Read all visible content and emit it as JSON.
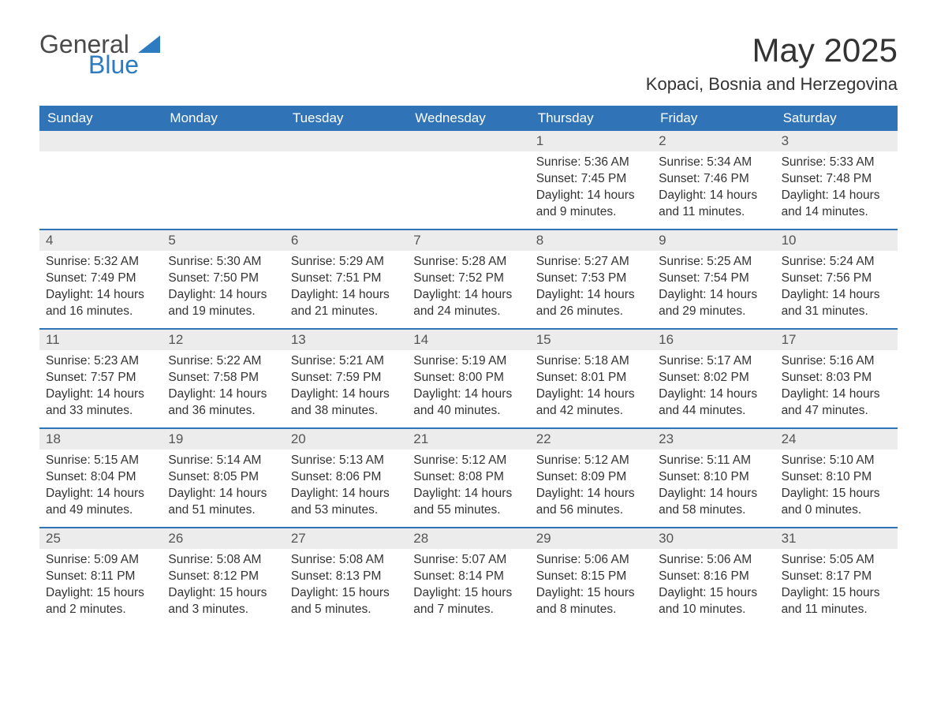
{
  "brand": {
    "general": "General",
    "blue": "Blue"
  },
  "title": "May 2025",
  "location": "Kopaci, Bosnia and Herzegovina",
  "colors": {
    "header_bg": "#3073b6",
    "header_text": "#ffffff",
    "daynum_bg": "#ececec",
    "text": "#333333",
    "brand_blue": "#2d7bc0",
    "brand_gray": "#4a4a4a",
    "page_bg": "#ffffff"
  },
  "typography": {
    "month_title_fontsize": 42,
    "location_fontsize": 22,
    "dow_fontsize": 17,
    "daynum_fontsize": 17,
    "info_fontsize": 15.5,
    "logo_fontsize": 32
  },
  "dow": [
    "Sunday",
    "Monday",
    "Tuesday",
    "Wednesday",
    "Thursday",
    "Friday",
    "Saturday"
  ],
  "weeks": [
    [
      {
        "n": "",
        "sunrise": "",
        "sunset": "",
        "daylight": ""
      },
      {
        "n": "",
        "sunrise": "",
        "sunset": "",
        "daylight": ""
      },
      {
        "n": "",
        "sunrise": "",
        "sunset": "",
        "daylight": ""
      },
      {
        "n": "",
        "sunrise": "",
        "sunset": "",
        "daylight": ""
      },
      {
        "n": "1",
        "sunrise": "Sunrise: 5:36 AM",
        "sunset": "Sunset: 7:45 PM",
        "daylight": "Daylight: 14 hours and 9 minutes."
      },
      {
        "n": "2",
        "sunrise": "Sunrise: 5:34 AM",
        "sunset": "Sunset: 7:46 PM",
        "daylight": "Daylight: 14 hours and 11 minutes."
      },
      {
        "n": "3",
        "sunrise": "Sunrise: 5:33 AM",
        "sunset": "Sunset: 7:48 PM",
        "daylight": "Daylight: 14 hours and 14 minutes."
      }
    ],
    [
      {
        "n": "4",
        "sunrise": "Sunrise: 5:32 AM",
        "sunset": "Sunset: 7:49 PM",
        "daylight": "Daylight: 14 hours and 16 minutes."
      },
      {
        "n": "5",
        "sunrise": "Sunrise: 5:30 AM",
        "sunset": "Sunset: 7:50 PM",
        "daylight": "Daylight: 14 hours and 19 minutes."
      },
      {
        "n": "6",
        "sunrise": "Sunrise: 5:29 AM",
        "sunset": "Sunset: 7:51 PM",
        "daylight": "Daylight: 14 hours and 21 minutes."
      },
      {
        "n": "7",
        "sunrise": "Sunrise: 5:28 AM",
        "sunset": "Sunset: 7:52 PM",
        "daylight": "Daylight: 14 hours and 24 minutes."
      },
      {
        "n": "8",
        "sunrise": "Sunrise: 5:27 AM",
        "sunset": "Sunset: 7:53 PM",
        "daylight": "Daylight: 14 hours and 26 minutes."
      },
      {
        "n": "9",
        "sunrise": "Sunrise: 5:25 AM",
        "sunset": "Sunset: 7:54 PM",
        "daylight": "Daylight: 14 hours and 29 minutes."
      },
      {
        "n": "10",
        "sunrise": "Sunrise: 5:24 AM",
        "sunset": "Sunset: 7:56 PM",
        "daylight": "Daylight: 14 hours and 31 minutes."
      }
    ],
    [
      {
        "n": "11",
        "sunrise": "Sunrise: 5:23 AM",
        "sunset": "Sunset: 7:57 PM",
        "daylight": "Daylight: 14 hours and 33 minutes."
      },
      {
        "n": "12",
        "sunrise": "Sunrise: 5:22 AM",
        "sunset": "Sunset: 7:58 PM",
        "daylight": "Daylight: 14 hours and 36 minutes."
      },
      {
        "n": "13",
        "sunrise": "Sunrise: 5:21 AM",
        "sunset": "Sunset: 7:59 PM",
        "daylight": "Daylight: 14 hours and 38 minutes."
      },
      {
        "n": "14",
        "sunrise": "Sunrise: 5:19 AM",
        "sunset": "Sunset: 8:00 PM",
        "daylight": "Daylight: 14 hours and 40 minutes."
      },
      {
        "n": "15",
        "sunrise": "Sunrise: 5:18 AM",
        "sunset": "Sunset: 8:01 PM",
        "daylight": "Daylight: 14 hours and 42 minutes."
      },
      {
        "n": "16",
        "sunrise": "Sunrise: 5:17 AM",
        "sunset": "Sunset: 8:02 PM",
        "daylight": "Daylight: 14 hours and 44 minutes."
      },
      {
        "n": "17",
        "sunrise": "Sunrise: 5:16 AM",
        "sunset": "Sunset: 8:03 PM",
        "daylight": "Daylight: 14 hours and 47 minutes."
      }
    ],
    [
      {
        "n": "18",
        "sunrise": "Sunrise: 5:15 AM",
        "sunset": "Sunset: 8:04 PM",
        "daylight": "Daylight: 14 hours and 49 minutes."
      },
      {
        "n": "19",
        "sunrise": "Sunrise: 5:14 AM",
        "sunset": "Sunset: 8:05 PM",
        "daylight": "Daylight: 14 hours and 51 minutes."
      },
      {
        "n": "20",
        "sunrise": "Sunrise: 5:13 AM",
        "sunset": "Sunset: 8:06 PM",
        "daylight": "Daylight: 14 hours and 53 minutes."
      },
      {
        "n": "21",
        "sunrise": "Sunrise: 5:12 AM",
        "sunset": "Sunset: 8:08 PM",
        "daylight": "Daylight: 14 hours and 55 minutes."
      },
      {
        "n": "22",
        "sunrise": "Sunrise: 5:12 AM",
        "sunset": "Sunset: 8:09 PM",
        "daylight": "Daylight: 14 hours and 56 minutes."
      },
      {
        "n": "23",
        "sunrise": "Sunrise: 5:11 AM",
        "sunset": "Sunset: 8:10 PM",
        "daylight": "Daylight: 14 hours and 58 minutes."
      },
      {
        "n": "24",
        "sunrise": "Sunrise: 5:10 AM",
        "sunset": "Sunset: 8:10 PM",
        "daylight": "Daylight: 15 hours and 0 minutes."
      }
    ],
    [
      {
        "n": "25",
        "sunrise": "Sunrise: 5:09 AM",
        "sunset": "Sunset: 8:11 PM",
        "daylight": "Daylight: 15 hours and 2 minutes."
      },
      {
        "n": "26",
        "sunrise": "Sunrise: 5:08 AM",
        "sunset": "Sunset: 8:12 PM",
        "daylight": "Daylight: 15 hours and 3 minutes."
      },
      {
        "n": "27",
        "sunrise": "Sunrise: 5:08 AM",
        "sunset": "Sunset: 8:13 PM",
        "daylight": "Daylight: 15 hours and 5 minutes."
      },
      {
        "n": "28",
        "sunrise": "Sunrise: 5:07 AM",
        "sunset": "Sunset: 8:14 PM",
        "daylight": "Daylight: 15 hours and 7 minutes."
      },
      {
        "n": "29",
        "sunrise": "Sunrise: 5:06 AM",
        "sunset": "Sunset: 8:15 PM",
        "daylight": "Daylight: 15 hours and 8 minutes."
      },
      {
        "n": "30",
        "sunrise": "Sunrise: 5:06 AM",
        "sunset": "Sunset: 8:16 PM",
        "daylight": "Daylight: 15 hours and 10 minutes."
      },
      {
        "n": "31",
        "sunrise": "Sunrise: 5:05 AM",
        "sunset": "Sunset: 8:17 PM",
        "daylight": "Daylight: 15 hours and 11 minutes."
      }
    ]
  ]
}
